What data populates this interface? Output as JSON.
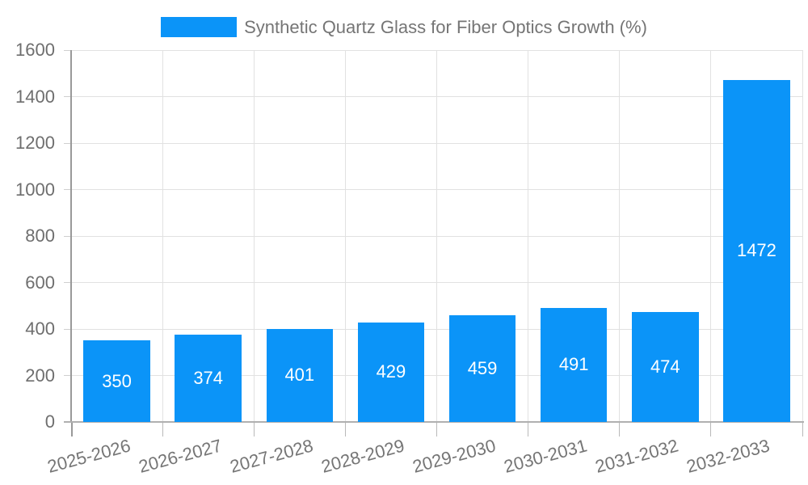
{
  "chart_data": {
    "type": "bar",
    "title": "Synthetic Quartz Glass for Fiber Optics Growth (%)",
    "legend": {
      "position": "top",
      "entries": [
        "Synthetic Quartz Glass for Fiber Optics Growth (%)"
      ]
    },
    "categories": [
      "2025-2026",
      "2026-2027",
      "2027-2028",
      "2028-2029",
      "2029-2030",
      "2030-2031",
      "2031-2032",
      "2032-2033"
    ],
    "series": [
      {
        "name": "Synthetic Quartz Glass for Fiber Optics Growth (%)",
        "values": [
          350,
          374,
          401,
          429,
          459,
          491,
          474,
          1472
        ]
      }
    ],
    "bar_value_labels": [
      "350",
      "374",
      "401",
      "429",
      "459",
      "491",
      "474",
      "1472"
    ],
    "xlabel": "",
    "ylabel": "",
    "ylim": [
      0,
      1600
    ],
    "yticks": [
      0,
      200,
      400,
      600,
      800,
      1000,
      1200,
      1400,
      1600
    ],
    "grid": "both",
    "colors": {
      "bar": "#0b94f8",
      "bar_label": "#ffffff",
      "grid": "#e1e1e1",
      "axis": "#999999",
      "baseline": "#b0b0b0",
      "tick": "#b9b9b9",
      "axis_text": "#6e6e6e",
      "title_text": "#757575",
      "background": "#ffffff"
    }
  }
}
